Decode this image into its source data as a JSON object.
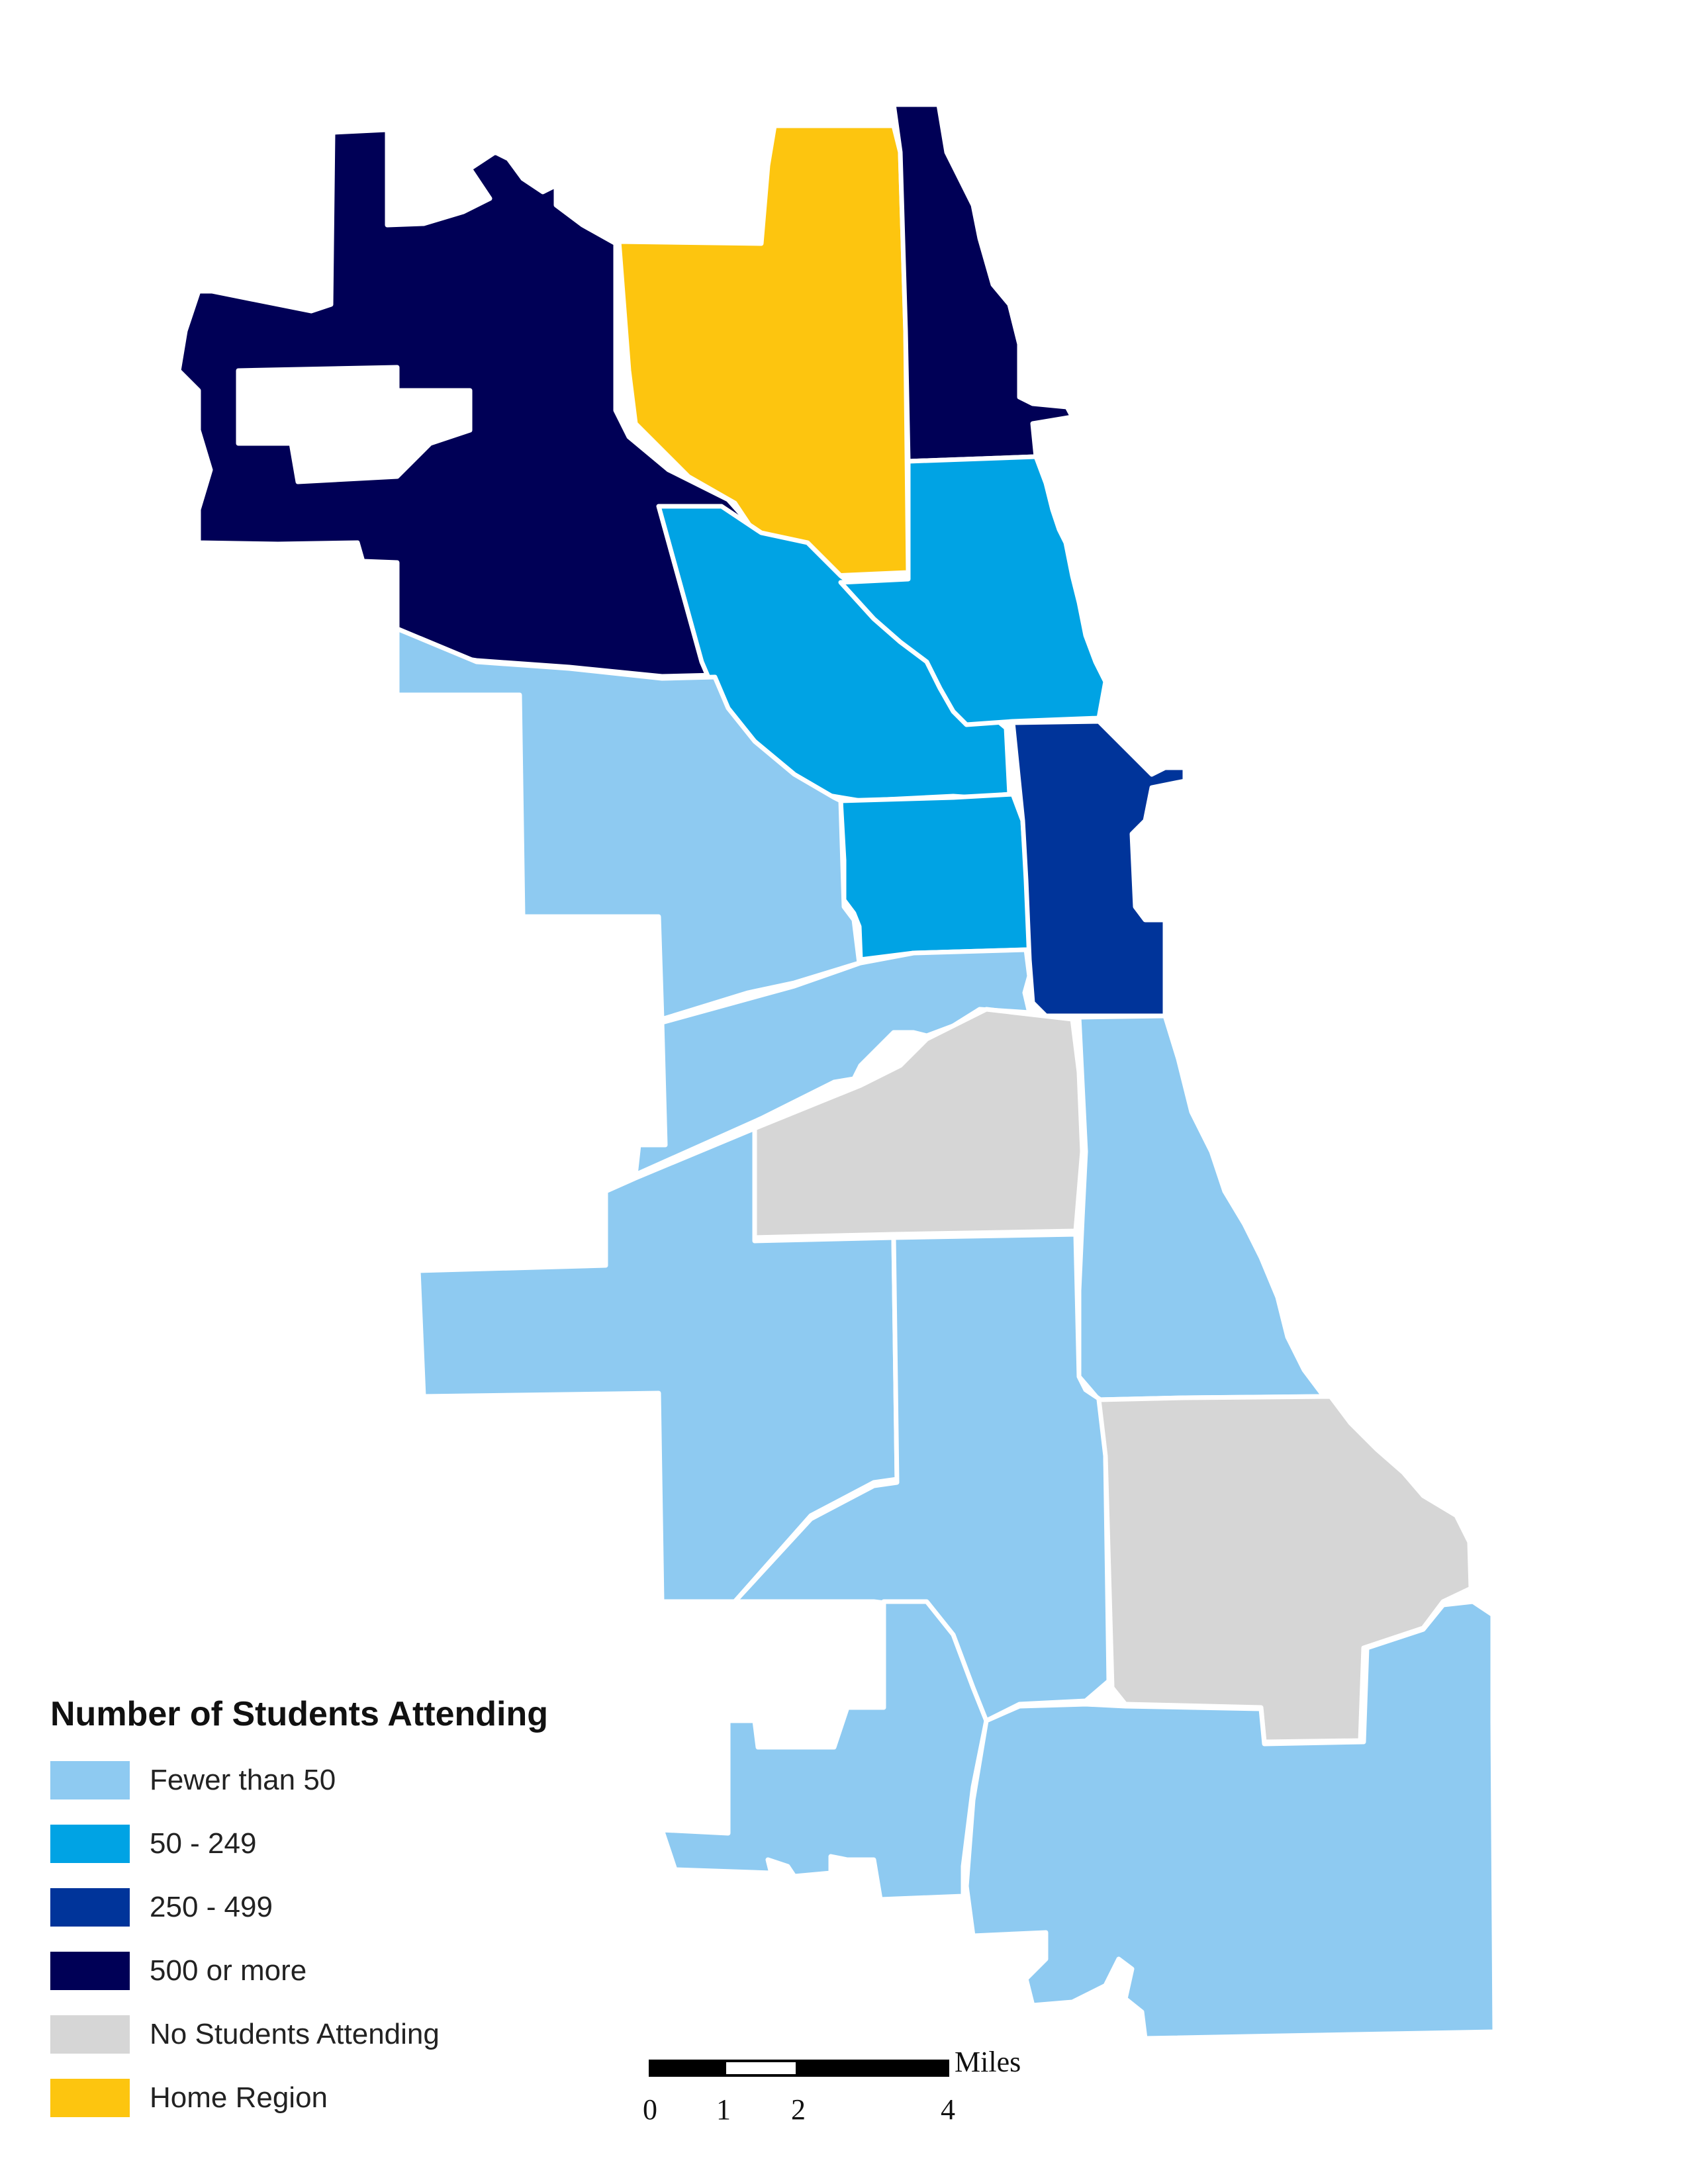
{
  "colors": {
    "fewer_than_50": "#8ecaf1",
    "50_249": "#00a3e4",
    "250_499": "#00349a",
    "500_or_more": "#000056",
    "no_students": "#d6d6d6",
    "home_region": "#fdc50f",
    "border": "#ffffff"
  },
  "legend": {
    "title": "Number of Students Attending",
    "items": [
      {
        "label": "Fewer than 50",
        "color": "#8ecaf1"
      },
      {
        "label": "50 - 249",
        "color": "#00a3e4"
      },
      {
        "label": "250 - 499",
        "color": "#00349a"
      },
      {
        "label": "500 or more",
        "color": "#000056"
      },
      {
        "label": "No Students Attending",
        "color": "#d6d6d6"
      },
      {
        "label": "Home Region",
        "color": "#fdc50f"
      }
    ]
  },
  "scale_bar": {
    "unit": "Miles",
    "ticks": [
      "0",
      "1",
      "2",
      "4"
    ]
  }
}
